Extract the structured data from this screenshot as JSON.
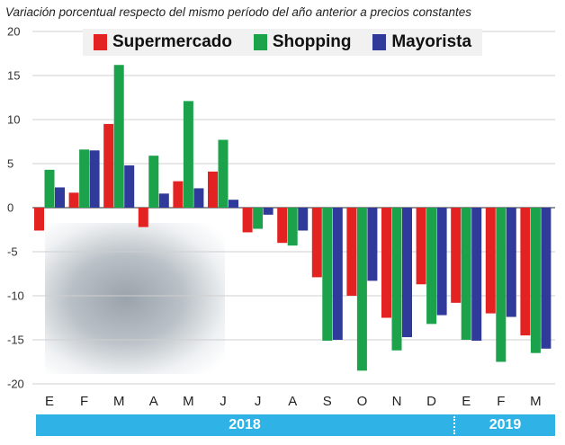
{
  "chart_data": {
    "type": "bar",
    "title": "Variación porcentual respecto del mismo período del año anterior a precios constantes",
    "categories": [
      "E",
      "F",
      "M",
      "A",
      "M",
      "J",
      "J",
      "A",
      "S",
      "O",
      "N",
      "D",
      "E",
      "F",
      "M"
    ],
    "years": [
      "2018",
      "2019"
    ],
    "ylim": [
      -20,
      20
    ],
    "yticks": [
      "20",
      "15",
      "10",
      "5",
      "0",
      "-5",
      "-10",
      "-15",
      "-20"
    ],
    "grid": true,
    "legend_position": "top",
    "series": [
      {
        "name": "Supermercado",
        "color": "#e32222",
        "values": [
          -2.6,
          1.7,
          9.5,
          -2.2,
          3.0,
          4.1,
          -2.8,
          -4.0,
          -7.9,
          -10.0,
          -12.5,
          -8.7,
          -10.8,
          -12.0,
          -14.5
        ]
      },
      {
        "name": "Shopping",
        "color": "#1ca24a",
        "values": [
          4.3,
          6.6,
          16.2,
          5.9,
          12.1,
          7.7,
          -2.4,
          -4.3,
          -15.1,
          -18.5,
          -16.2,
          -13.2,
          -15.0,
          -17.5,
          -16.5
        ]
      },
      {
        "name": "Mayorista",
        "color": "#2f3a9b",
        "values": [
          2.3,
          6.5,
          4.8,
          1.6,
          2.2,
          0.9,
          -0.8,
          -2.6,
          -15.0,
          -8.3,
          -14.7,
          -12.2,
          -15.1,
          -12.4,
          -16.0
        ]
      }
    ]
  }
}
